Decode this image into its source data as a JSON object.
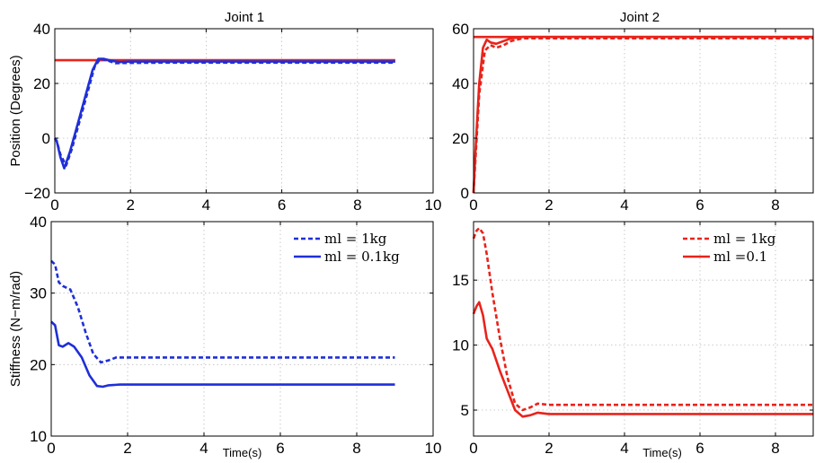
{
  "chart_data": [
    {
      "type": "line",
      "title": "Joint 1",
      "ylabel": "Position (Degrees)",
      "xlabel": "",
      "xlim": [
        0,
        10
      ],
      "ylim": [
        -20,
        40
      ],
      "xticks": [
        0,
        2,
        4,
        6,
        8,
        10
      ],
      "yticks": [
        -20,
        0,
        20,
        40
      ],
      "ytick_labels": [
        "−20",
        "0",
        "20",
        "40"
      ],
      "grid": true,
      "series": [
        {
          "color": "#e8231b",
          "style": "solid",
          "x": [
            0,
            9
          ],
          "y": [
            28.5,
            28.5
          ]
        },
        {
          "color": "#1f2fd8",
          "style": "solid",
          "x": [
            0,
            0.05,
            0.15,
            0.25,
            0.4,
            0.6,
            0.8,
            1.0,
            1.15,
            1.3,
            1.5,
            1.7,
            2.0,
            3,
            5,
            7,
            9
          ],
          "y": [
            0,
            -1,
            -7,
            -11,
            -5,
            5,
            15,
            25,
            29,
            29,
            28.3,
            27.8,
            28,
            28,
            28,
            28,
            28
          ]
        },
        {
          "color": "#1f2fd8",
          "style": "dashed",
          "x": [
            0,
            0.05,
            0.15,
            0.3,
            0.45,
            0.65,
            0.85,
            1.05,
            1.2,
            1.35,
            1.6,
            2.0,
            3,
            5,
            7,
            9
          ],
          "y": [
            0,
            -1,
            -6,
            -10,
            -4,
            6,
            16,
            26,
            29,
            28.6,
            27.4,
            27.5,
            27.6,
            27.6,
            27.6,
            27.6
          ]
        }
      ]
    },
    {
      "type": "line",
      "title": "Joint 2",
      "ylabel": "",
      "xlabel": "",
      "xlim": [
        0,
        9
      ],
      "ylim": [
        0,
        60
      ],
      "xticks": [
        0,
        2,
        4,
        6,
        8
      ],
      "yticks": [
        0,
        20,
        40,
        60
      ],
      "ytick_labels": [
        "0",
        "20",
        "40",
        "60"
      ],
      "grid": true,
      "series": [
        {
          "color": "#e8231b",
          "style": "solid",
          "x": [
            0,
            9
          ],
          "y": [
            57,
            57
          ]
        },
        {
          "color": "#e8231b",
          "style": "solid",
          "x": [
            0,
            0.05,
            0.15,
            0.25,
            0.35,
            0.45,
            0.6,
            0.8,
            1.0,
            1.3,
            2,
            4,
            6,
            8,
            9
          ],
          "y": [
            0,
            15,
            40,
            53,
            56,
            55,
            54.5,
            55.5,
            56.5,
            57,
            57,
            57,
            57,
            57,
            57
          ]
        },
        {
          "color": "#e8231b",
          "style": "dashed",
          "x": [
            0,
            0.05,
            0.15,
            0.3,
            0.45,
            0.6,
            0.8,
            1.0,
            1.3,
            2,
            4,
            6,
            8,
            9
          ],
          "y": [
            0,
            12,
            36,
            52,
            54,
            53,
            54,
            55.5,
            56.5,
            56.5,
            56.5,
            56.5,
            56.5,
            56.5
          ]
        }
      ]
    },
    {
      "type": "line",
      "title": "",
      "ylabel": "Stiffness (N−m/rad)",
      "xlabel": "Time(s)",
      "xlim": [
        0,
        10
      ],
      "ylim": [
        10,
        40
      ],
      "xticks": [
        0,
        2,
        4,
        6,
        8,
        10
      ],
      "yticks": [
        10,
        20,
        30,
        40
      ],
      "ytick_labels": [
        "10",
        "20",
        "30",
        "40"
      ],
      "grid": true,
      "legend_position": "top-right",
      "series": [
        {
          "name": "ml = 1kg",
          "color": "#1f2fd8",
          "style": "dashed",
          "x": [
            0,
            0.1,
            0.2,
            0.3,
            0.5,
            0.7,
            0.9,
            1.1,
            1.3,
            1.5,
            1.7,
            2,
            3,
            5,
            7,
            9
          ],
          "y": [
            34.5,
            34,
            31.5,
            31,
            30.5,
            28,
            24.5,
            21.5,
            20.3,
            20.6,
            21,
            21,
            21,
            21,
            21,
            21
          ]
        },
        {
          "name": "ml = 0.1kg",
          "color": "#1f2fd8",
          "style": "solid",
          "x": [
            0,
            0.1,
            0.2,
            0.3,
            0.45,
            0.6,
            0.8,
            1.0,
            1.2,
            1.35,
            1.5,
            1.8,
            2.2,
            3,
            5,
            7,
            9
          ],
          "y": [
            26,
            25.5,
            22.7,
            22.5,
            23,
            22.5,
            21,
            18.5,
            17,
            16.9,
            17.1,
            17.2,
            17.2,
            17.2,
            17.2,
            17.2,
            17.2
          ]
        }
      ]
    },
    {
      "type": "line",
      "title": "",
      "ylabel": "",
      "xlabel": "Time(s)",
      "xlim": [
        0,
        9
      ],
      "ylim": [
        3,
        19.5
      ],
      "xticks": [
        0,
        2,
        4,
        6,
        8
      ],
      "yticks": [
        5,
        10,
        15
      ],
      "ytick_labels": [
        "5",
        "10",
        "15"
      ],
      "grid": true,
      "legend_position": "top-right",
      "series": [
        {
          "name": "ml = 1kg",
          "color": "#e8231b",
          "style": "dashed",
          "x": [
            0,
            0.08,
            0.15,
            0.25,
            0.35,
            0.5,
            0.7,
            0.9,
            1.1,
            1.3,
            1.5,
            1.7,
            2,
            3,
            5,
            7,
            9
          ],
          "y": [
            18.2,
            18.8,
            19,
            18.6,
            17,
            14,
            10.5,
            7.5,
            5.5,
            5,
            5.2,
            5.5,
            5.4,
            5.4,
            5.4,
            5.4,
            5.4
          ]
        },
        {
          "name": "ml =0.1",
          "color": "#e8231b",
          "style": "solid",
          "x": [
            0,
            0.08,
            0.15,
            0.25,
            0.35,
            0.5,
            0.7,
            0.9,
            1.1,
            1.3,
            1.5,
            1.7,
            2,
            3,
            5,
            7,
            9
          ],
          "y": [
            12.4,
            13,
            13.3,
            12.3,
            10.5,
            9.7,
            8,
            6.5,
            5,
            4.5,
            4.6,
            4.8,
            4.7,
            4.7,
            4.7,
            4.7,
            4.7
          ]
        }
      ]
    }
  ]
}
